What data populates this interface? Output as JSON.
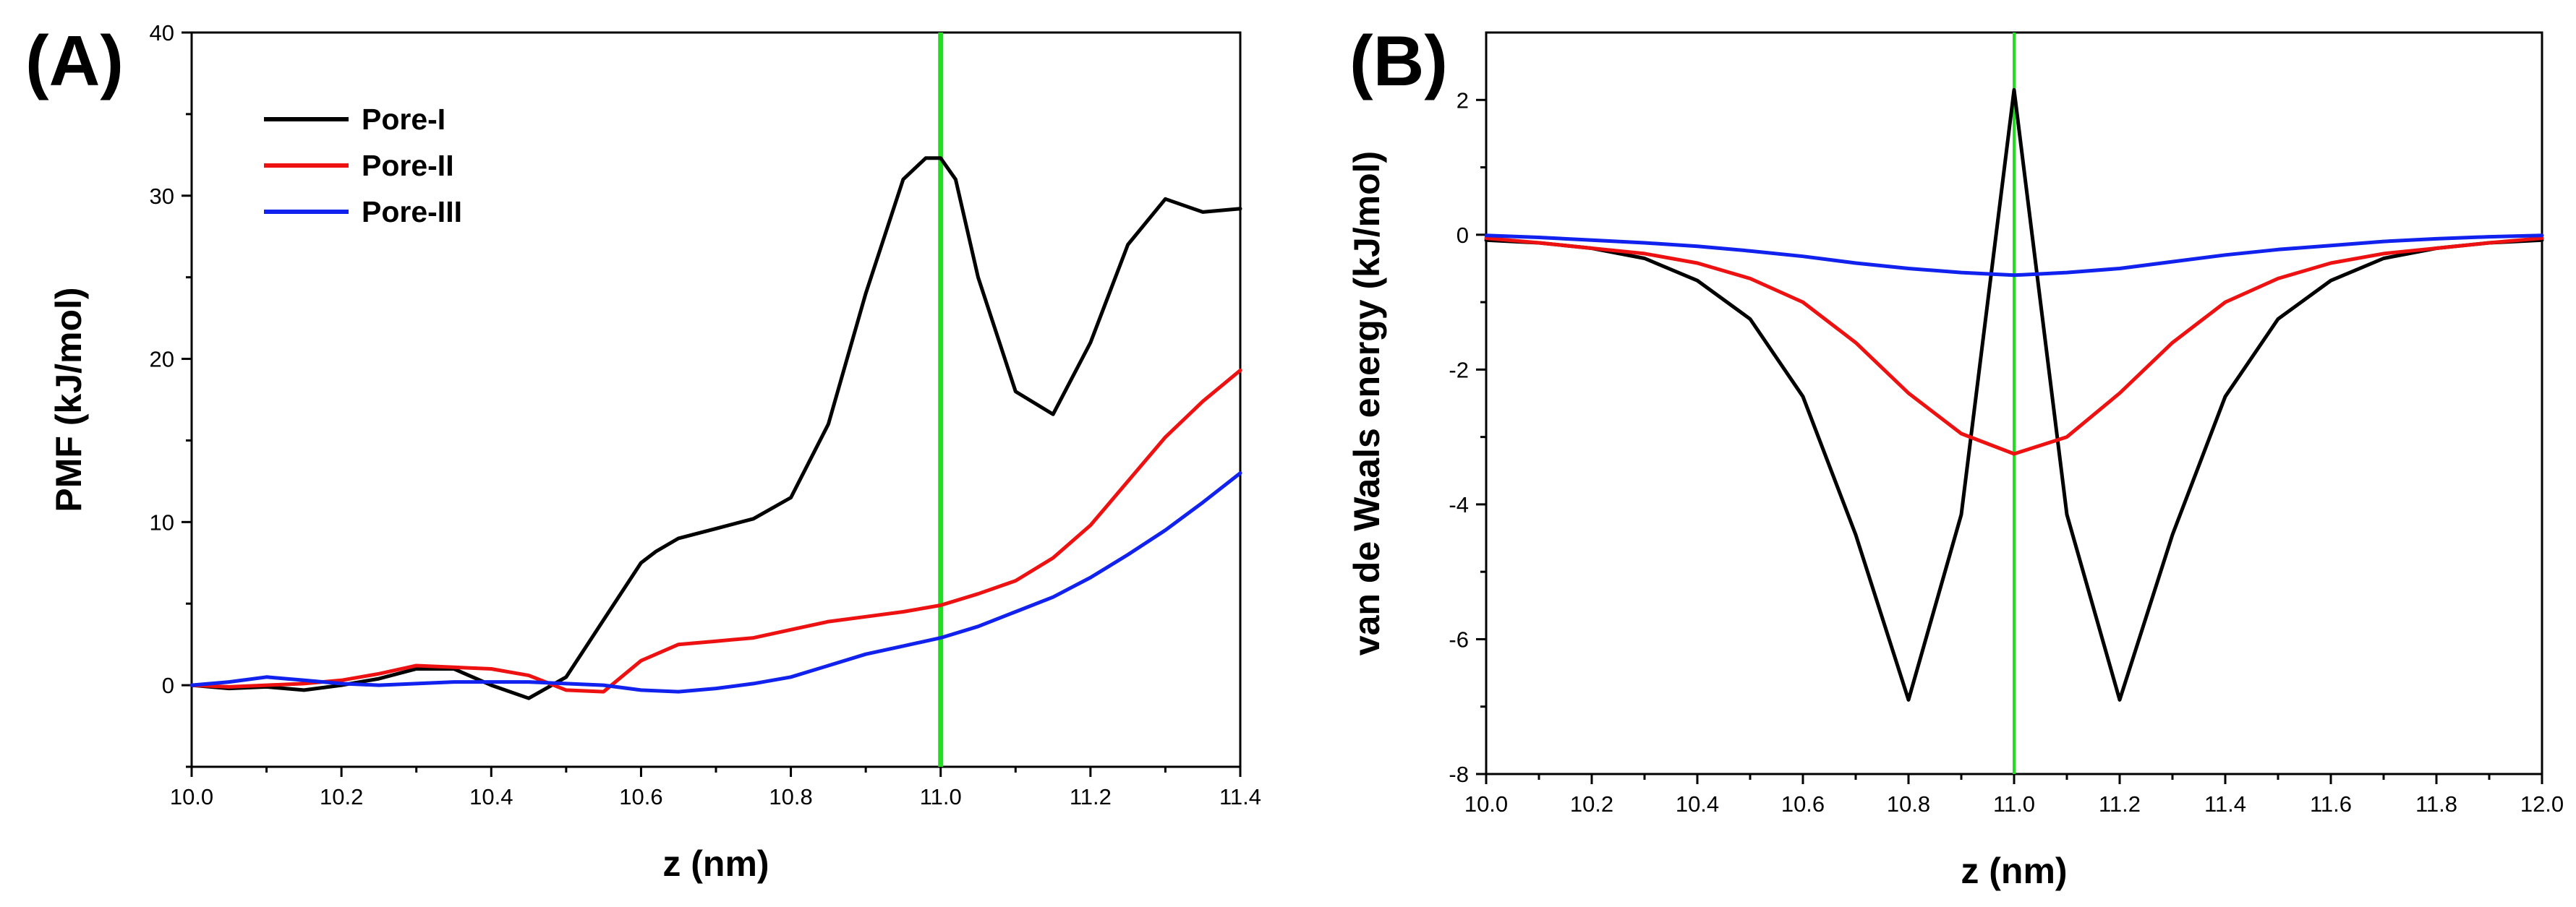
{
  "chart_data": [
    {
      "type": "line",
      "panel_label": "(A)",
      "xlabel": "z (nm)",
      "ylabel": "PMF (kJ/mol)",
      "xlim": [
        10.0,
        11.4
      ],
      "ylim": [
        -5,
        40
      ],
      "x_ticks": [
        10.0,
        10.2,
        10.4,
        10.6,
        10.8,
        11.0,
        11.2,
        11.4
      ],
      "x_tick_labels": [
        "10.0",
        "10.2",
        "10.4",
        "10.6",
        "10.8",
        "11.0",
        "11.2",
        "11.4"
      ],
      "y_ticks": [
        0,
        10,
        20,
        30,
        40
      ],
      "y_tick_labels": [
        "0",
        "10",
        "20",
        "30",
        "40"
      ],
      "vline": {
        "x": 11.0,
        "color": "#22dd22"
      },
      "legend": {
        "placement": "top-left"
      },
      "series": [
        {
          "name": "Pore-I",
          "color": "#000000",
          "x": [
            10.0,
            10.05,
            10.1,
            10.15,
            10.2,
            10.25,
            10.3,
            10.35,
            10.4,
            10.45,
            10.5,
            10.55,
            10.6,
            10.62,
            10.65,
            10.7,
            10.75,
            10.8,
            10.85,
            10.9,
            10.95,
            10.98,
            11.0,
            11.02,
            11.05,
            11.1,
            11.15,
            11.2,
            11.25,
            11.3,
            11.35,
            11.4
          ],
          "y": [
            0,
            -0.2,
            -0.1,
            -0.3,
            0.0,
            0.4,
            1.0,
            1.0,
            0.0,
            -0.8,
            0.5,
            4.0,
            7.5,
            8.2,
            9.0,
            9.6,
            10.2,
            11.5,
            16.0,
            24.0,
            31.0,
            32.3,
            32.3,
            31.0,
            25.0,
            18.0,
            16.6,
            21.0,
            27.0,
            29.8,
            29.0,
            29.2
          ]
        },
        {
          "name": "Pore-II",
          "color": "#ee1111",
          "x": [
            10.0,
            10.05,
            10.1,
            10.15,
            10.2,
            10.25,
            10.3,
            10.35,
            10.4,
            10.45,
            10.5,
            10.55,
            10.6,
            10.65,
            10.7,
            10.75,
            10.8,
            10.85,
            10.9,
            10.95,
            11.0,
            11.05,
            11.1,
            11.15,
            11.2,
            11.25,
            11.3,
            11.35,
            11.4
          ],
          "y": [
            0,
            -0.1,
            0.0,
            0.1,
            0.3,
            0.7,
            1.2,
            1.1,
            1.0,
            0.6,
            -0.3,
            -0.4,
            1.5,
            2.5,
            2.7,
            2.9,
            3.4,
            3.9,
            4.2,
            4.5,
            4.9,
            5.6,
            6.4,
            7.8,
            9.8,
            12.5,
            15.2,
            17.4,
            19.3
          ]
        },
        {
          "name": "Pore-III",
          "color": "#1122ee",
          "x": [
            10.0,
            10.05,
            10.1,
            10.15,
            10.2,
            10.25,
            10.3,
            10.35,
            10.4,
            10.45,
            10.5,
            10.55,
            10.6,
            10.65,
            10.7,
            10.75,
            10.8,
            10.85,
            10.9,
            10.95,
            11.0,
            11.05,
            11.1,
            11.15,
            11.2,
            11.25,
            11.3,
            11.35,
            11.4
          ],
          "y": [
            0,
            0.2,
            0.5,
            0.3,
            0.1,
            0.0,
            0.1,
            0.2,
            0.2,
            0.2,
            0.1,
            0.0,
            -0.3,
            -0.4,
            -0.2,
            0.1,
            0.5,
            1.2,
            1.9,
            2.4,
            2.9,
            3.6,
            4.5,
            5.4,
            6.6,
            8.0,
            9.5,
            11.2,
            13.0
          ]
        }
      ]
    },
    {
      "type": "line",
      "panel_label": "(B)",
      "xlabel": "z (nm)",
      "ylabel": "van de Waals energy (kJ/mol)",
      "xlim": [
        10.0,
        12.0
      ],
      "ylim": [
        -8,
        3
      ],
      "x_ticks": [
        10.0,
        10.2,
        10.4,
        10.6,
        10.8,
        11.0,
        11.2,
        11.4,
        11.6,
        11.8,
        12.0
      ],
      "x_tick_labels": [
        "10.0",
        "10.2",
        "10.4",
        "10.6",
        "10.8",
        "11.0",
        "11.2",
        "11.4",
        "11.6",
        "11.8",
        "12.0"
      ],
      "y_ticks": [
        -8,
        -6,
        -4,
        -2,
        0,
        2
      ],
      "y_tick_labels": [
        "-8",
        "-6",
        "-4",
        "-2",
        "0",
        "2"
      ],
      "vline": {
        "x": 11.0,
        "color": "#22dd22"
      },
      "series": [
        {
          "name": "Pore-I",
          "color": "#000000",
          "x": [
            10.0,
            10.1,
            10.2,
            10.3,
            10.4,
            10.5,
            10.6,
            10.7,
            10.8,
            10.9,
            11.0,
            11.1,
            11.2,
            11.3,
            11.4,
            11.5,
            11.6,
            11.7,
            11.8,
            11.9,
            12.0
          ],
          "y": [
            -0.08,
            -0.12,
            -0.2,
            -0.35,
            -0.68,
            -1.25,
            -2.4,
            -4.45,
            -6.9,
            -4.15,
            2.15,
            -4.15,
            -6.9,
            -4.45,
            -2.4,
            -1.25,
            -0.68,
            -0.35,
            -0.2,
            -0.12,
            -0.08
          ]
        },
        {
          "name": "Pore-II",
          "color": "#ee1111",
          "x": [
            10.0,
            10.1,
            10.2,
            10.3,
            10.4,
            10.5,
            10.6,
            10.7,
            10.8,
            10.9,
            11.0,
            11.1,
            11.2,
            11.3,
            11.4,
            11.5,
            11.6,
            11.7,
            11.8,
            11.9,
            12.0
          ],
          "y": [
            -0.05,
            -0.12,
            -0.2,
            -0.28,
            -0.42,
            -0.65,
            -1.0,
            -1.6,
            -2.35,
            -2.95,
            -3.25,
            -3.0,
            -2.35,
            -1.6,
            -1.0,
            -0.65,
            -0.42,
            -0.28,
            -0.2,
            -0.12,
            -0.05
          ]
        },
        {
          "name": "Pore-III",
          "color": "#1122ee",
          "x": [
            10.0,
            10.1,
            10.2,
            10.3,
            10.4,
            10.5,
            10.6,
            10.7,
            10.8,
            10.9,
            11.0,
            11.1,
            11.2,
            11.3,
            11.4,
            11.5,
            11.6,
            11.7,
            11.8,
            11.9,
            12.0
          ],
          "y": [
            -0.01,
            -0.04,
            -0.08,
            -0.12,
            -0.17,
            -0.24,
            -0.32,
            -0.42,
            -0.5,
            -0.56,
            -0.6,
            -0.56,
            -0.5,
            -0.4,
            -0.3,
            -0.22,
            -0.16,
            -0.1,
            -0.06,
            -0.03,
            -0.01
          ]
        }
      ]
    }
  ]
}
